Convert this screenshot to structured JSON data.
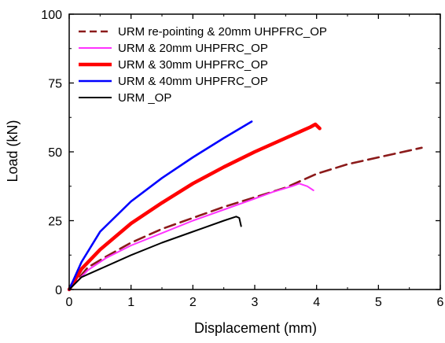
{
  "chart_data": {
    "type": "line",
    "title": "",
    "xlabel": "Displacement (mm)",
    "ylabel": "Load (kN)",
    "xlim": [
      0,
      6
    ],
    "ylim": [
      0,
      100
    ],
    "xticks": [
      0,
      1,
      2,
      3,
      4,
      5,
      6
    ],
    "yticks": [
      0,
      25,
      50,
      75,
      100
    ],
    "grid": false,
    "legend_position": "top-left",
    "series": [
      {
        "name": "URM re-pointing & 20mm UHPFRC_OP",
        "color": "#8B1A1A",
        "style": "dashed",
        "x": [
          0,
          0.3,
          0.6,
          1.0,
          1.5,
          2.0,
          2.5,
          3.0,
          3.5,
          4.0,
          4.5,
          5.0,
          5.5,
          5.7
        ],
        "y": [
          0,
          8,
          12,
          17,
          22,
          26,
          30,
          33.5,
          37,
          42,
          45.5,
          48,
          50.5,
          51.5
        ]
      },
      {
        "name": "URM & 20mm UHPFRC_OP",
        "color": "#FF33FF",
        "style": "solid",
        "x": [
          0,
          0.3,
          0.6,
          1.0,
          1.5,
          2.0,
          2.5,
          3.0,
          3.3,
          3.6,
          3.72,
          3.85,
          3.95
        ],
        "y": [
          0,
          7,
          11.5,
          16,
          20.5,
          25,
          29,
          33,
          35.5,
          37.5,
          38.5,
          37.5,
          36
        ]
      },
      {
        "name": "URM & 30mm UHPFRC_OP",
        "color": "#FF0000",
        "style": "solid",
        "x": [
          0,
          0.2,
          0.5,
          1.0,
          1.5,
          2.0,
          2.5,
          3.0,
          3.5,
          3.9,
          3.98,
          4.05
        ],
        "y": [
          0,
          7.5,
          14.5,
          24,
          31.5,
          38.5,
          44.5,
          50,
          55,
          59,
          60,
          58.5
        ]
      },
      {
        "name": "URM & 40mm UHPFRC_OP",
        "color": "#0000FF",
        "style": "solid",
        "x": [
          0,
          0.2,
          0.5,
          1.0,
          1.5,
          2.0,
          2.5,
          2.95
        ],
        "y": [
          0,
          10,
          21,
          32,
          40.5,
          48,
          55,
          61
        ]
      },
      {
        "name": "URM _OP",
        "color": "#000000",
        "style": "solid",
        "x": [
          0,
          0.2,
          0.5,
          1.0,
          1.5,
          2.0,
          2.5,
          2.7,
          2.75,
          2.78
        ],
        "y": [
          0,
          4.5,
          7.5,
          12.5,
          17,
          21,
          25,
          26.5,
          26,
          23
        ]
      }
    ]
  }
}
